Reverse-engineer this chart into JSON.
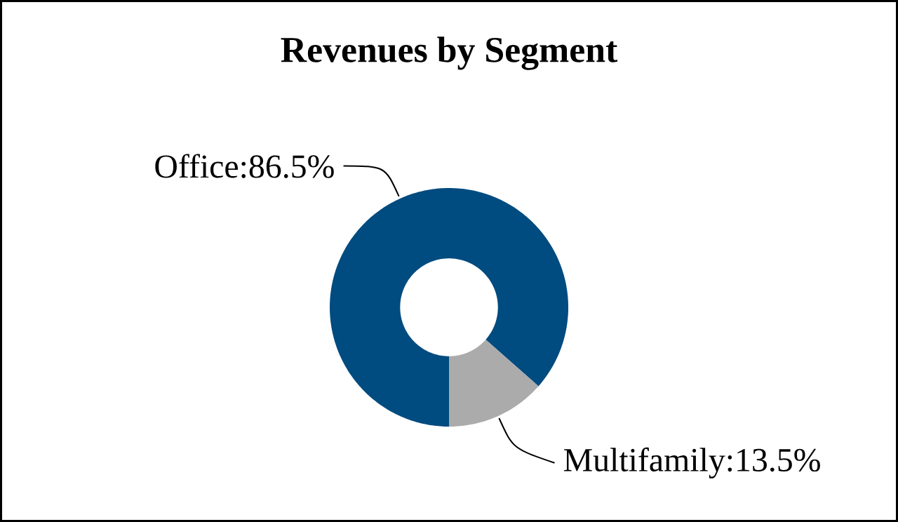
{
  "chart_data": {
    "type": "donut",
    "title": "Revenues by Segment",
    "categories": [
      "Office",
      "Multifamily"
    ],
    "values": [
      86.5,
      13.5
    ],
    "value_labels": [
      ":86.5%",
      ":13.5%"
    ],
    "colors": [
      "#004b7f",
      "#ababab"
    ]
  }
}
